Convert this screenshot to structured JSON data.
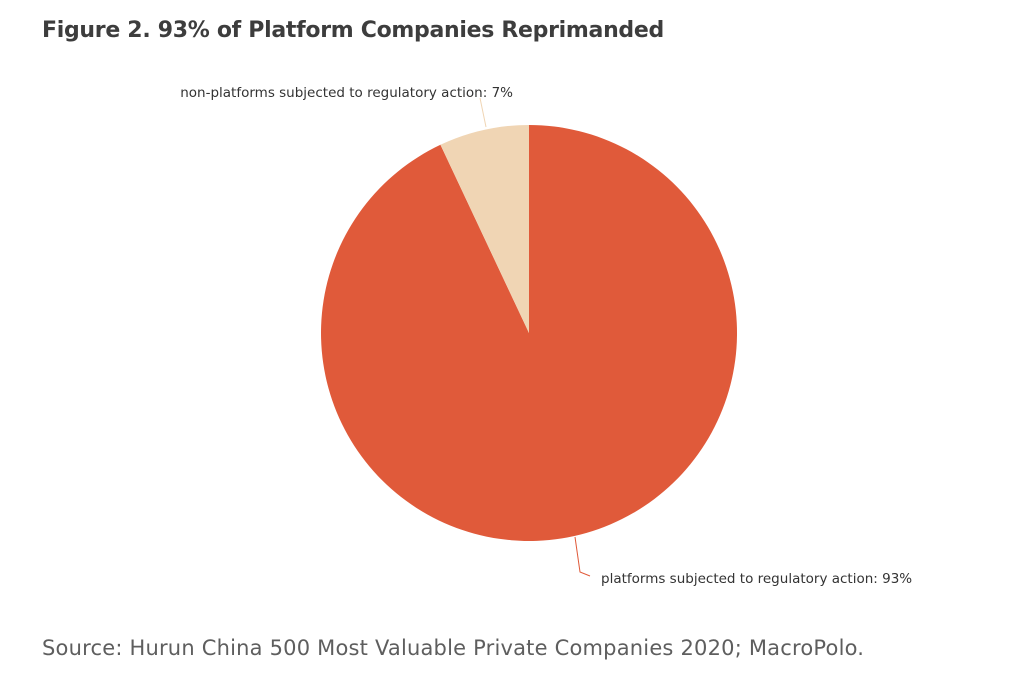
{
  "title": "Figure 2. 93% of Platform Companies Reprimanded",
  "source": "Source: Hurun China 500 Most Valuable Private Companies 2020; MacroPolo.",
  "chart_data": {
    "type": "pie",
    "title": "Figure 2. 93% of Platform Companies Reprimanded",
    "slices": [
      {
        "label": "platforms subjected to regulatory action: 93%",
        "category": "platforms subjected to regulatory action",
        "value": 93,
        "color": "#e05a3a"
      },
      {
        "label": "non-platforms subjected to regulatory action: 7%",
        "category": "non-platforms subjected to regulatory action",
        "value": 7,
        "color": "#f0d5b4"
      }
    ],
    "start_angle": "12 o'clock",
    "direction": "clockwise",
    "legend": "none",
    "label_style": "callout lines"
  }
}
